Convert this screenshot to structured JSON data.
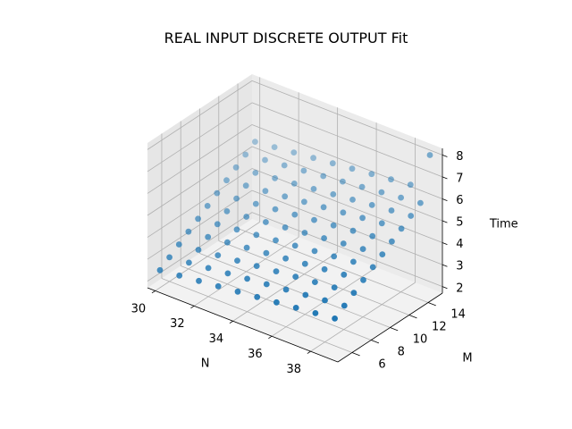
{
  "chart_data": {
    "type": "scatter",
    "projection": "3d",
    "title": "REAL INPUT DISCRETE OUTPUT Fit",
    "xlabel": "N",
    "ylabel": "M",
    "zlabel": "Time",
    "xlim": [
      29.6,
      39.4
    ],
    "ylim": [
      4.5,
      15.5
    ],
    "zlim": [
      1.7,
      8.3
    ],
    "xticks": [
      30,
      32,
      34,
      36,
      38
    ],
    "yticks": [
      6,
      8,
      10,
      12,
      14
    ],
    "zticks": [
      2,
      3,
      4,
      5,
      6,
      7,
      8
    ],
    "grid": true,
    "legend": "none",
    "marker_color": "#1f77b4",
    "series": [
      {
        "values": [
          {
            "N": 30,
            "M": 5,
            "T": 2.5
          },
          {
            "N": 31,
            "M": 5,
            "T": 2.6
          },
          {
            "N": 32,
            "M": 5,
            "T": 2.7
          },
          {
            "N": 33,
            "M": 5,
            "T": 2.8
          },
          {
            "N": 34,
            "M": 5,
            "T": 2.9
          },
          {
            "N": 35,
            "M": 5,
            "T": 3.0
          },
          {
            "N": 36,
            "M": 5,
            "T": 3.1
          },
          {
            "N": 37,
            "M": 5,
            "T": 3.2
          },
          {
            "N": 38,
            "M": 5,
            "T": 3.3
          },
          {
            "N": 39,
            "M": 5,
            "T": 3.4
          },
          {
            "N": 30,
            "M": 6,
            "T": 2.8
          },
          {
            "N": 31,
            "M": 6,
            "T": 2.9
          },
          {
            "N": 32,
            "M": 6,
            "T": 3.0
          },
          {
            "N": 33,
            "M": 6,
            "T": 3.1
          },
          {
            "N": 34,
            "M": 6,
            "T": 3.2
          },
          {
            "N": 35,
            "M": 6,
            "T": 3.3
          },
          {
            "N": 36,
            "M": 6,
            "T": 3.4
          },
          {
            "N": 37,
            "M": 6,
            "T": 3.5
          },
          {
            "N": 38,
            "M": 6,
            "T": 3.6
          },
          {
            "N": 39,
            "M": 6,
            "T": 3.7
          },
          {
            "N": 30,
            "M": 7,
            "T": 3.1
          },
          {
            "N": 31,
            "M": 7,
            "T": 3.2
          },
          {
            "N": 32,
            "M": 7,
            "T": 3.3
          },
          {
            "N": 33,
            "M": 7,
            "T": 3.4
          },
          {
            "N": 34,
            "M": 7,
            "T": 3.5
          },
          {
            "N": 35,
            "M": 7,
            "T": 3.6
          },
          {
            "N": 36,
            "M": 7,
            "T": 3.7
          },
          {
            "N": 37,
            "M": 7,
            "T": 3.8
          },
          {
            "N": 38,
            "M": 7,
            "T": 3.9
          },
          {
            "N": 39,
            "M": 7,
            "T": 4.0
          },
          {
            "N": 30,
            "M": 8,
            "T": 3.4
          },
          {
            "N": 31,
            "M": 8,
            "T": 3.5
          },
          {
            "N": 32,
            "M": 8,
            "T": 3.6
          },
          {
            "N": 33,
            "M": 8,
            "T": 3.7
          },
          {
            "N": 34,
            "M": 8,
            "T": 3.8
          },
          {
            "N": 35,
            "M": 8,
            "T": 3.9
          },
          {
            "N": 36,
            "M": 8,
            "T": 4.0
          },
          {
            "N": 37,
            "M": 8,
            "T": 4.1
          },
          {
            "N": 38,
            "M": 8,
            "T": 4.2
          },
          {
            "N": 39,
            "M": 8,
            "T": 4.3
          },
          {
            "N": 30,
            "M": 9,
            "T": 3.7
          },
          {
            "N": 31,
            "M": 9,
            "T": 3.8
          },
          {
            "N": 32,
            "M": 9,
            "T": 3.9
          },
          {
            "N": 33,
            "M": 9,
            "T": 4.0
          },
          {
            "N": 34,
            "M": 9,
            "T": 4.1
          },
          {
            "N": 35,
            "M": 9,
            "T": 4.2
          },
          {
            "N": 36,
            "M": 9,
            "T": 4.3
          },
          {
            "N": 37,
            "M": 9,
            "T": 4.4
          },
          {
            "N": 38,
            "M": 9,
            "T": 4.5
          },
          {
            "N": 39,
            "M": 9,
            "T": 4.6
          },
          {
            "N": 30,
            "M": 10,
            "T": 4.0
          },
          {
            "N": 31,
            "M": 10,
            "T": 4.1
          },
          {
            "N": 32,
            "M": 10,
            "T": 4.2
          },
          {
            "N": 33,
            "M": 10,
            "T": 4.3
          },
          {
            "N": 34,
            "M": 10,
            "T": 4.4
          },
          {
            "N": 35,
            "M": 10,
            "T": 4.5
          },
          {
            "N": 36,
            "M": 10,
            "T": 4.6
          },
          {
            "N": 37,
            "M": 10,
            "T": 4.7
          },
          {
            "N": 38,
            "M": 10,
            "T": 4.8
          },
          {
            "N": 39,
            "M": 10,
            "T": 4.9
          },
          {
            "N": 30,
            "M": 11,
            "T": 4.3
          },
          {
            "N": 31,
            "M": 11,
            "T": 4.4
          },
          {
            "N": 32,
            "M": 11,
            "T": 4.5
          },
          {
            "N": 33,
            "M": 11,
            "T": 4.6
          },
          {
            "N": 34,
            "M": 11,
            "T": 4.7
          },
          {
            "N": 35,
            "M": 11,
            "T": 4.8
          },
          {
            "N": 36,
            "M": 11,
            "T": 4.9
          },
          {
            "N": 37,
            "M": 11,
            "T": 5.0
          },
          {
            "N": 38,
            "M": 11,
            "T": 5.1
          },
          {
            "N": 39,
            "M": 11,
            "T": 5.2
          },
          {
            "N": 30,
            "M": 12,
            "T": 4.6
          },
          {
            "N": 31,
            "M": 12,
            "T": 4.7
          },
          {
            "N": 32,
            "M": 12,
            "T": 4.8
          },
          {
            "N": 33,
            "M": 12,
            "T": 4.9
          },
          {
            "N": 34,
            "M": 12,
            "T": 5.0
          },
          {
            "N": 35,
            "M": 12,
            "T": 5.1
          },
          {
            "N": 36,
            "M": 12,
            "T": 5.2
          },
          {
            "N": 37,
            "M": 12,
            "T": 5.3
          },
          {
            "N": 38,
            "M": 12,
            "T": 5.4
          },
          {
            "N": 39,
            "M": 12,
            "T": 5.5
          },
          {
            "N": 30,
            "M": 13,
            "T": 4.9
          },
          {
            "N": 31,
            "M": 13,
            "T": 5.0
          },
          {
            "N": 32,
            "M": 13,
            "T": 5.1
          },
          {
            "N": 33,
            "M": 13,
            "T": 5.2
          },
          {
            "N": 34,
            "M": 13,
            "T": 5.3
          },
          {
            "N": 35,
            "M": 13,
            "T": 5.4
          },
          {
            "N": 36,
            "M": 13,
            "T": 5.5
          },
          {
            "N": 37,
            "M": 13,
            "T": 5.6
          },
          {
            "N": 38,
            "M": 13,
            "T": 5.7
          },
          {
            "N": 39,
            "M": 13,
            "T": 5.8
          },
          {
            "N": 30,
            "M": 14,
            "T": 5.2
          },
          {
            "N": 31,
            "M": 14,
            "T": 5.3
          },
          {
            "N": 32,
            "M": 14,
            "T": 5.4
          },
          {
            "N": 33,
            "M": 14,
            "T": 5.5
          },
          {
            "N": 34,
            "M": 14,
            "T": 5.6
          },
          {
            "N": 35,
            "M": 14,
            "T": 5.7
          },
          {
            "N": 36,
            "M": 14,
            "T": 5.8
          },
          {
            "N": 37,
            "M": 14,
            "T": 5.9
          },
          {
            "N": 38,
            "M": 14,
            "T": 6.0
          },
          {
            "N": 39,
            "M": 14,
            "T": 6.1
          },
          {
            "N": 30,
            "M": 15,
            "T": 5.5
          },
          {
            "N": 31,
            "M": 15,
            "T": 5.6
          },
          {
            "N": 32,
            "M": 15,
            "T": 5.7
          },
          {
            "N": 33,
            "M": 15,
            "T": 5.8
          },
          {
            "N": 34,
            "M": 15,
            "T": 5.9
          },
          {
            "N": 35,
            "M": 15,
            "T": 6.0
          },
          {
            "N": 36,
            "M": 15,
            "T": 6.1
          },
          {
            "N": 37,
            "M": 15,
            "T": 6.2
          },
          {
            "N": 38,
            "M": 15,
            "T": 6.3
          },
          {
            "N": 39,
            "M": 15,
            "T": 8.0
          }
        ]
      }
    ]
  }
}
